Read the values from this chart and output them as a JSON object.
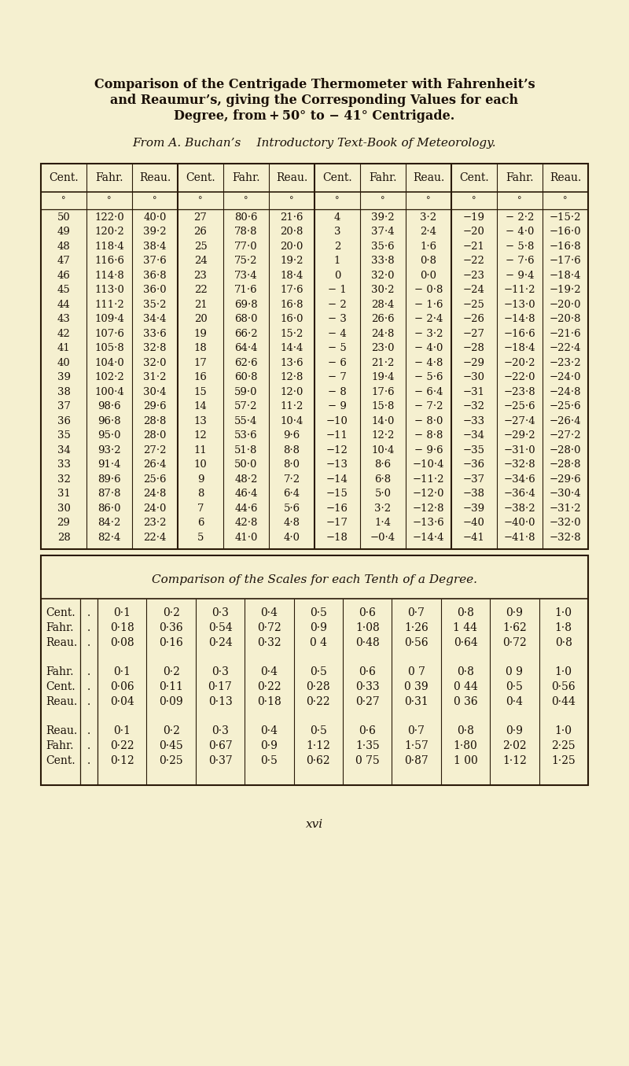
{
  "bg_color": "#f5f0d0",
  "title_line1": "Comparison of the Centrigade Thermometer with Fahrenheit's",
  "title_line2": "and Reaumur's, giving the Corresponding Values for each",
  "title_line3": "Degree, from + 50° to − 41° Centrigade.",
  "subtitle": "From A. Buchan's  Introductory Text-Book of Meteorology.",
  "main_headers": [
    "Cent.",
    "Fahr.",
    "Reau.",
    "Cent.",
    "Fahr.",
    "Reau.",
    "Cent.",
    "Fahr.",
    "Reau.",
    "Cent.",
    "Fahr.",
    "Reau."
  ],
  "main_data": [
    [
      "50",
      "122·0",
      "40·0",
      "27",
      "80·6",
      "21·6",
      "4",
      "39·2",
      "3·2",
      "−19",
      "− 2·2",
      "−15·2"
    ],
    [
      "49",
      "120·2",
      "39·2",
      "26",
      "78·8",
      "20·8",
      "3",
      "37·4",
      "2·4",
      "−20",
      "− 4·0",
      "−16·0"
    ],
    [
      "48",
      "118·4",
      "38·4",
      "25",
      "77·0",
      "20·0",
      "2",
      "35·6",
      "1·6",
      "−21",
      "− 5·8",
      "−16·8"
    ],
    [
      "47",
      "116·6",
      "37·6",
      "24",
      "75·2",
      "19·2",
      "1",
      "33·8",
      "0·8",
      "−22",
      "− 7·6",
      "−17·6"
    ],
    [
      "46",
      "114·8",
      "36·8",
      "23",
      "73·4",
      "18·4",
      "0",
      "32·0",
      "0·0",
      "−23",
      "− 9·4",
      "−18·4"
    ],
    [
      "45",
      "113·0",
      "36·0",
      "22",
      "71·6",
      "17·6",
      "− 1",
      "30·2",
      "− 0·8",
      "−24",
      "−11·2",
      "−19·2"
    ],
    [
      "44",
      "111·2",
      "35·2",
      "21",
      "69·8",
      "16·8",
      "− 2",
      "28·4",
      "− 1·6",
      "−25",
      "−13·0",
      "−20·0"
    ],
    [
      "43",
      "109·4",
      "34·4",
      "20",
      "68·0",
      "16·0",
      "− 3",
      "26·6",
      "− 2·4",
      "−26",
      "−14·8",
      "−20·8"
    ],
    [
      "42",
      "107·6",
      "33·6",
      "19",
      "66·2",
      "15·2",
      "− 4",
      "24·8",
      "− 3·2",
      "−27",
      "−16·6",
      "−21·6"
    ],
    [
      "41",
      "105·8",
      "32·8",
      "18",
      "64·4",
      "14·4",
      "− 5",
      "23·0",
      "− 4·0",
      "−28",
      "−18·4",
      "−22·4"
    ],
    [
      "40",
      "104·0",
      "32·0",
      "17",
      "62·6",
      "13·6",
      "− 6",
      "21·2",
      "− 4·8",
      "−29",
      "−20·2",
      "−23·2"
    ],
    [
      "39",
      "102·2",
      "31·2",
      "16",
      "60·8",
      "12·8",
      "− 7",
      "19·4",
      "− 5·6",
      "−30",
      "−22·0",
      "−24·0"
    ],
    [
      "38",
      "100·4",
      "30·4",
      "15",
      "59·0",
      "12·0",
      "− 8",
      "17·6",
      "− 6·4",
      "−31",
      "−23·8",
      "−24·8"
    ],
    [
      "37",
      "98·6",
      "29·6",
      "14",
      "57·2",
      "11·2",
      "− 9",
      "15·8",
      "− 7·2",
      "−32",
      "−25·6",
      "−25·6"
    ],
    [
      "36",
      "96·8",
      "28·8",
      "13",
      "55·4",
      "10·4",
      "−10",
      "14·0",
      "− 8·0",
      "−33",
      "−27·4",
      "−26·4"
    ],
    [
      "35",
      "95·0",
      "28·0",
      "12",
      "53·6",
      "9·6",
      "−11",
      "12·2",
      "− 8·8",
      "−34",
      "−29·2",
      "−27·2"
    ],
    [
      "34",
      "93·2",
      "27·2",
      "11",
      "51·8",
      "8·8",
      "−12",
      "10·4",
      "− 9·6",
      "−35",
      "−31·0",
      "−28·0"
    ],
    [
      "33",
      "91·4",
      "26·4",
      "10",
      "50·0",
      "8·0",
      "−13",
      "8·6",
      "−10·4",
      "−36",
      "−32·8",
      "−28·8"
    ],
    [
      "32",
      "89·6",
      "25·6",
      "9",
      "48·2",
      "7·2",
      "−14",
      "6·8",
      "−11·2",
      "−37",
      "−34·6",
      "−29·6"
    ],
    [
      "31",
      "87·8",
      "24·8",
      "8",
      "46·4",
      "6·4",
      "−15",
      "5·0",
      "−12·0",
      "−38",
      "−36·4",
      "−30·4"
    ],
    [
      "30",
      "86·0",
      "24·0",
      "7",
      "44·6",
      "5·6",
      "−16",
      "3·2",
      "−12·8",
      "−39",
      "−38·2",
      "−31·2"
    ],
    [
      "29",
      "84·2",
      "23·2",
      "6",
      "42·8",
      "4·8",
      "−17",
      "1·4",
      "−13·6",
      "−40",
      "−40·0",
      "−32·0"
    ],
    [
      "28",
      "82·4",
      "22·4",
      "5",
      "41·0",
      "4·0",
      "−18",
      "−0·4",
      "−14·4",
      "−41",
      "−41·8",
      "−32·8"
    ]
  ],
  "tenths_title": "Comparison of the Scales for each Tenth of a Degree.",
  "block1_labels": [
    "Cent.",
    "Fahr.",
    "Reau."
  ],
  "block1": [
    [
      "0·1",
      "0·2",
      "0·3",
      "0·4",
      "0·5",
      "0·6",
      "0·7",
      "0·8",
      "0·9",
      "1·0"
    ],
    [
      "0·18",
      "0·36",
      "0·54",
      "0·72",
      "0·9",
      "1·08",
      "1·26",
      "1 44",
      "1·62",
      "1·8"
    ],
    [
      "0·08",
      "0·16",
      "0·24",
      "0·32",
      "0 4",
      "0·48",
      "0·56",
      "0·64",
      "0·72",
      "0·8"
    ]
  ],
  "block2_labels": [
    "Fahr.",
    "Cent.",
    "Reau."
  ],
  "block2": [
    [
      "0·1",
      "0·2",
      "0·3",
      "0·4",
      "0·5",
      "0·6",
      "0 7",
      "0·8",
      "0 9",
      "1·0"
    ],
    [
      "0·06",
      "0·11",
      "0·17",
      "0·22",
      "0·28",
      "0·33",
      "0 39",
      "0 44",
      "0·5",
      "0·56"
    ],
    [
      "0·04",
      "0·09",
      "0·13",
      "0·18",
      "0·22",
      "0·27",
      "0·31",
      "0 36",
      "0·4",
      "0·44"
    ]
  ],
  "block3_labels": [
    "Reau.",
    "Fahr.",
    "Cent."
  ],
  "block3": [
    [
      "0·1",
      "0·2",
      "0·3",
      "0·4",
      "0·5",
      "0·6",
      "0·7",
      "0·8",
      "0·9",
      "1·0"
    ],
    [
      "0·22",
      "0·45",
      "0·67",
      "0·9",
      "1·12",
      "1·35",
      "1·57",
      "1·80",
      "2·02",
      "2·25"
    ],
    [
      "0·12",
      "0·25",
      "0·37",
      "0·5",
      "0·62",
      "0 75",
      "0·87",
      "1 00",
      "1·12",
      "1·25"
    ]
  ],
  "page_number": "xvi"
}
